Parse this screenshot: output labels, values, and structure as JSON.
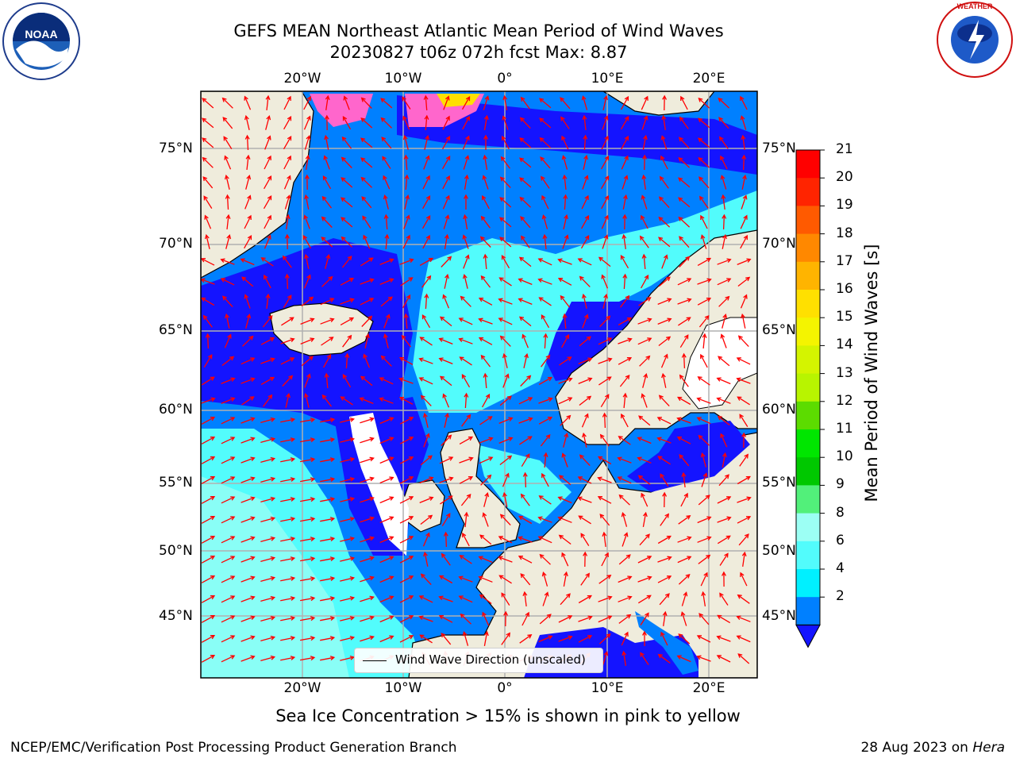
{
  "title": {
    "line1": "GEFS MEAN Northeast Atlantic Mean Period of Wind Waves",
    "line2": "20230827 t06z 072h fcst   Max: 8.87"
  },
  "logos": {
    "left": "NOAA",
    "right": "NATIONAL WEATHER SERVICE"
  },
  "map": {
    "lat_labels": [
      "75°N",
      "70°N",
      "65°N",
      "60°N",
      "55°N",
      "50°N",
      "45°N"
    ],
    "lon_labels": [
      "20°W",
      "10°W",
      "0°",
      "10°E",
      "20°E"
    ],
    "legend_text": "Wind Wave Direction (unscaled)"
  },
  "colorbar": {
    "label": "Mean Period of Wind Waves [s]",
    "ticks": [
      "21",
      "20",
      "19",
      "18",
      "17",
      "16",
      "15",
      "14",
      "13",
      "12",
      "11",
      "10",
      "9",
      "8",
      "6",
      "4",
      "2"
    ],
    "colors": [
      "#ff0000",
      "#ff2400",
      "#ff5a00",
      "#ff8800",
      "#ffb400",
      "#ffe000",
      "#f4f400",
      "#d4f400",
      "#b8f400",
      "#5cdc00",
      "#00e600",
      "#00c800",
      "#52f07a",
      "#9cfff4",
      "#52fcfc",
      "#00f0ff",
      "#0080ff"
    ],
    "extend_color": "#1414ff"
  },
  "subtitle": "Sea Ice Concentration > 15% is shown in pink to yellow",
  "footer": {
    "left": "NCEP/EMC/Verification Post Processing Product Generation Branch",
    "right_prefix": "28 Aug 2023 on ",
    "right_host": "Hera"
  }
}
